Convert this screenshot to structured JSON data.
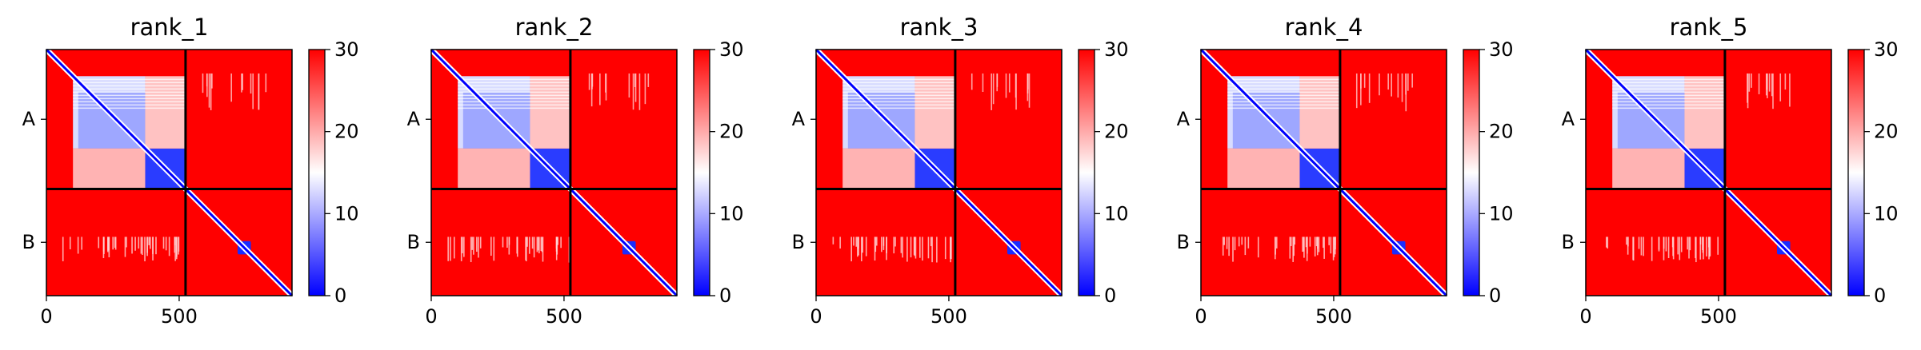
{
  "chart_data": {
    "type": "heatmap",
    "description_colormap": "bwr",
    "colors": {
      "low": "#0000ff",
      "mid": "#ffffff",
      "high": "#ff0000",
      "divider": "#000000"
    },
    "vmin": 0,
    "vmax": 30,
    "colorbar_ticks": [
      "0",
      "10",
      "20",
      "30"
    ],
    "chain_boundary": 524,
    "matrix_size": 925,
    "xticks": [
      {
        "value": 0,
        "label": "0"
      },
      {
        "value": 500,
        "label": "500"
      }
    ],
    "ytick_labels": [
      "A",
      "B"
    ],
    "chain_a_block_boundary": 372,
    "chain_a_start_offset": 100,
    "chain_b_domain": [
      720,
      770
    ],
    "panels": [
      {
        "title": "rank_1"
      },
      {
        "title": "rank_2"
      },
      {
        "title": "rank_3"
      },
      {
        "title": "rank_4"
      },
      {
        "title": "rank_5"
      }
    ]
  }
}
